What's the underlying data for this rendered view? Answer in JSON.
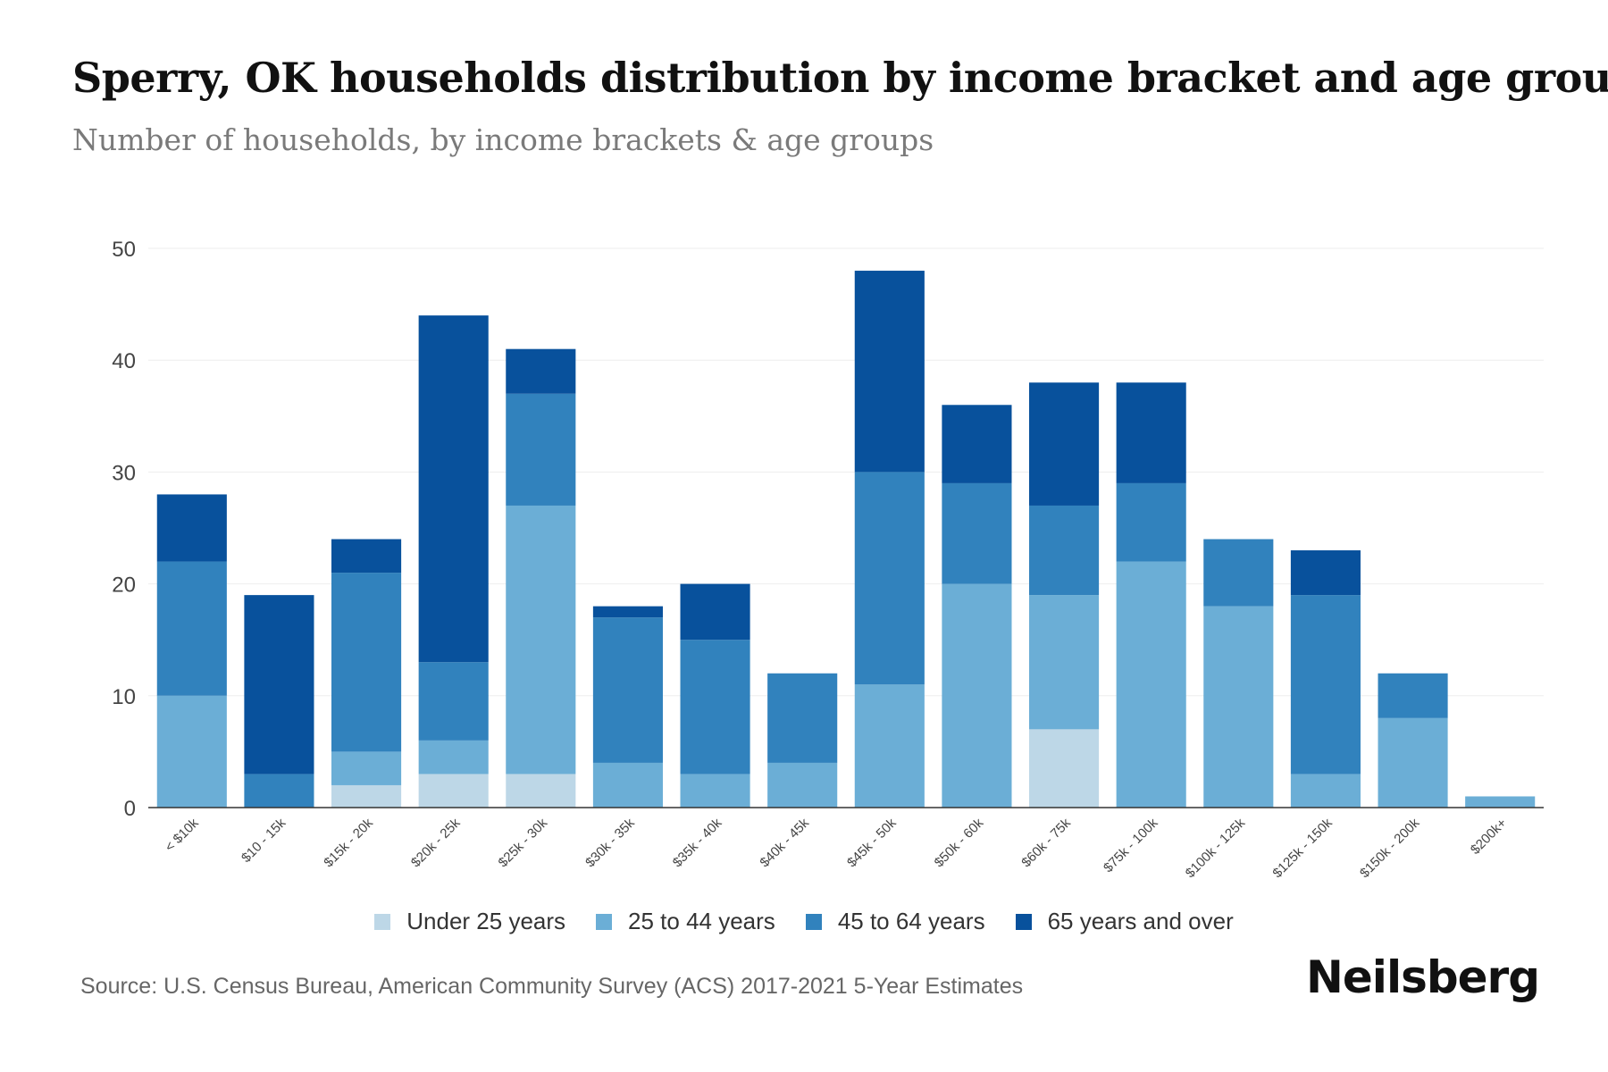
{
  "title": "Sperry, OK households distribution by income bracket and age group",
  "subtitle": "Number of households, by income brackets & age groups",
  "source": "Source: U.S. Census Bureau, American Community Survey (ACS) 2017-2021 5-Year Estimates",
  "logo": "Neilsberg",
  "colors": {
    "under25": "#bdd7e7",
    "age25to44": "#6baed6",
    "age45to64": "#3182bd",
    "age65plus": "#08519c",
    "grid": "#eeeeee",
    "axis": "#333333",
    "tick_text": "#444444"
  },
  "chart_data": {
    "type": "bar",
    "stacked": true,
    "title": "Sperry, OK households distribution by income bracket and age group",
    "xlabel": "",
    "ylabel": "",
    "ylim": [
      0,
      50
    ],
    "yticks": [
      0,
      10,
      20,
      30,
      40,
      50
    ],
    "grid": true,
    "legend_position": "bottom",
    "categories": [
      "< $10k",
      "$10 - 15k",
      "$15k - 20k",
      "$20k - 25k",
      "$25k - 30k",
      "$30k - 35k",
      "$35k - 40k",
      "$40k - 45k",
      "$45k - 50k",
      "$50k - 60k",
      "$60k - 75k",
      "$75k - 100k",
      "$100k - 125k",
      "$125k - 150k",
      "$150k - 200k",
      "$200k+"
    ],
    "series": [
      {
        "name": "Under 25 years",
        "color_key": "under25",
        "values": [
          0,
          0,
          2,
          3,
          3,
          0,
          0,
          0,
          0,
          0,
          7,
          0,
          0,
          0,
          0,
          0
        ]
      },
      {
        "name": "25 to 44 years",
        "color_key": "age25to44",
        "values": [
          10,
          0,
          3,
          3,
          24,
          4,
          3,
          4,
          11,
          20,
          12,
          22,
          18,
          3,
          8,
          1
        ]
      },
      {
        "name": "45 to 64 years",
        "color_key": "age45to64",
        "values": [
          12,
          3,
          16,
          7,
          10,
          13,
          12,
          8,
          19,
          9,
          8,
          7,
          6,
          16,
          4,
          0
        ]
      },
      {
        "name": "65 years and over",
        "color_key": "age65plus",
        "values": [
          6,
          16,
          3,
          31,
          4,
          1,
          5,
          0,
          18,
          7,
          11,
          9,
          0,
          4,
          0,
          0
        ]
      }
    ]
  }
}
